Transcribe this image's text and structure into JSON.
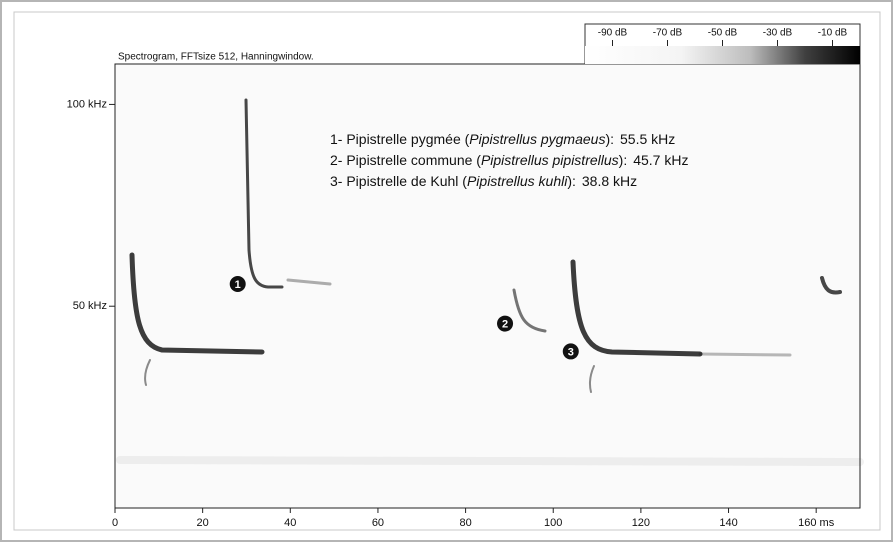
{
  "chart_data": {
    "type": "spectrogram",
    "title": "Spectrogram, FFTsize 512, Hanningwindow.",
    "xlim": [
      0,
      170
    ],
    "xticks": [
      0,
      20,
      40,
      60,
      80,
      100,
      120,
      140,
      {
        "value": 160,
        "label": "160 ms"
      }
    ],
    "ylim": [
      0,
      112
    ],
    "yticks": [
      {
        "value": 50,
        "label": "50 kHz"
      },
      {
        "value": 100,
        "label": "100 kHz"
      }
    ],
    "colorbar": {
      "lim": [
        -100,
        0
      ],
      "ticks": [
        {
          "value": -90,
          "label": "-90 dB"
        },
        {
          "value": -70,
          "label": "-70 dB"
        },
        {
          "value": -50,
          "label": "-50 dB"
        },
        {
          "value": -30,
          "label": "-30 dB"
        },
        {
          "value": -10,
          "label": "-10 dB"
        }
      ]
    },
    "calls": [
      {
        "marker": "1",
        "prefix": "1- Pipistrelle pygmée (",
        "latin": "Pipistrellus pygmaeus",
        "suffix": "):",
        "time": 28,
        "frequency": 55.5,
        "frequency_label": "55.5 kHz"
      },
      {
        "marker": "2",
        "prefix": "2- Pipistrelle commune (",
        "latin": "Pipistrellus pipistrellus",
        "suffix": "):",
        "time": 89,
        "frequency": 45.7,
        "frequency_label": "45.7 kHz"
      },
      {
        "marker": "3",
        "prefix": "3- Pipistrelle de Kuhl (",
        "latin": "Pipistrellus kuhli",
        "suffix": "):",
        "time": 104,
        "frequency": 38.8,
        "frequency_label": "38.8 kHz"
      }
    ]
  }
}
